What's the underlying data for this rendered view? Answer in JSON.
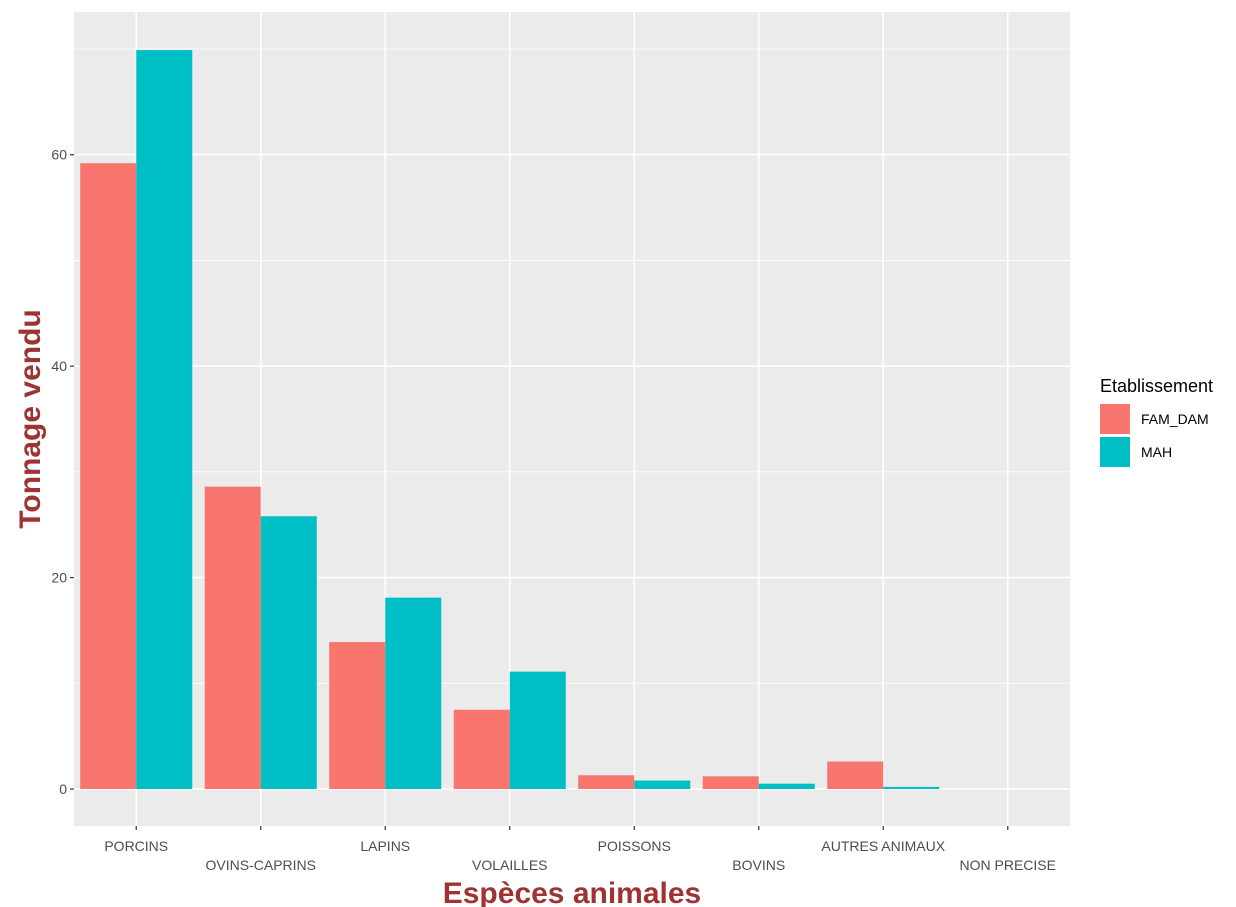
{
  "chart_data": {
    "type": "bar",
    "categories": [
      "PORCINS",
      "OVINS-CAPRINS",
      "LAPINS",
      "VOLAILLES",
      "POISSONS",
      "BOVINS",
      "AUTRES ANIMAUX",
      "NON PRECISE"
    ],
    "series": [
      {
        "name": "FAM_DAM",
        "color": "#F8766D",
        "values": [
          59.2,
          28.6,
          13.9,
          7.5,
          1.3,
          1.2,
          2.6,
          0
        ]
      },
      {
        "name": "MAH",
        "color": "#00BFC4",
        "values": [
          69.9,
          25.8,
          18.1,
          11.1,
          0.8,
          0.5,
          0.2,
          0
        ]
      }
    ],
    "title": "",
    "xlabel": "Espèces animales",
    "ylabel": "Tonnage vendu",
    "ylim": [
      -3.5,
      73.5
    ],
    "yticks": [
      0,
      20,
      40,
      60
    ],
    "grid": true,
    "legend": {
      "title": "Etablissement",
      "placement": "right"
    },
    "colors": {
      "panel": "#EBEBEB",
      "grid": "#FFFFFF",
      "axis_title": "#9E3333"
    }
  }
}
